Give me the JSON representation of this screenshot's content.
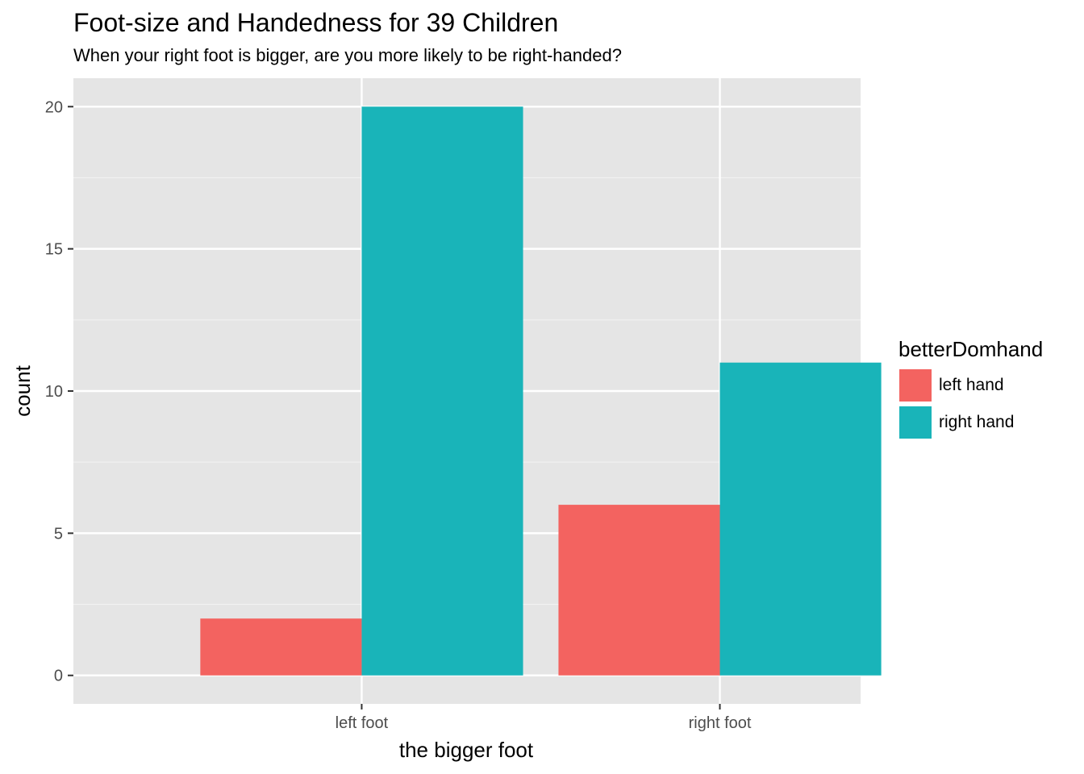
{
  "chart_data": {
    "type": "bar",
    "title": "Foot-size and Handedness for 39 Children",
    "subtitle": "When your right foot is bigger, are you more likely to be right-handed?",
    "xlabel": "the bigger foot",
    "ylabel": "count",
    "categories": [
      "left foot",
      "right foot"
    ],
    "series": [
      {
        "name": "left hand",
        "values": [
          2,
          6
        ],
        "color": "#F8766D"
      },
      {
        "name": "right hand",
        "values": [
          20,
          11
        ],
        "color": "#00BFC4"
      }
    ],
    "ylim": [
      -1,
      21
    ],
    "yticks": [
      0,
      5,
      10,
      15,
      20
    ],
    "grid": true,
    "legend": {
      "title": "betterDomhand",
      "placement": "right"
    },
    "panel_color": "#E5E5E5",
    "bar_colors": [
      "#F36360",
      "#19B4B9"
    ]
  }
}
